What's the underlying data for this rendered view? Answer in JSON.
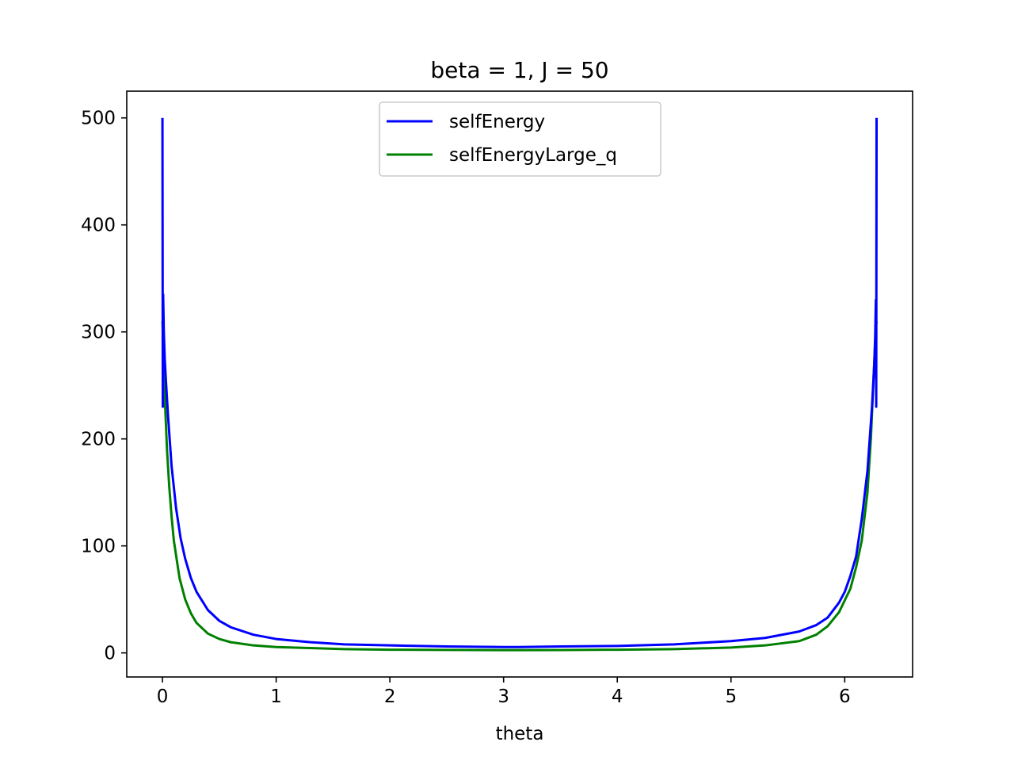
{
  "chart_data": {
    "type": "line",
    "title": "beta = 1, J = 50",
    "xlabel": "theta",
    "ylabel": "",
    "xlim": [
      -0.314,
      6.597
    ],
    "ylim": [
      -22.5,
      525
    ],
    "xticks": [
      0,
      1,
      2,
      3,
      4,
      5,
      6
    ],
    "xtick_labels": [
      "0",
      "1",
      "2",
      "3",
      "4",
      "5",
      "6"
    ],
    "yticks": [
      0,
      100,
      200,
      300,
      400,
      500
    ],
    "ytick_labels": [
      "0",
      "100",
      "200",
      "300",
      "400",
      "500"
    ],
    "grid": false,
    "legend_position": "upper center",
    "series": [
      {
        "name": "selfEnergy",
        "color": "#0000ff",
        "x": [
          0,
          0.003,
          0.006,
          0.012,
          0.02,
          0.03,
          0.05,
          0.08,
          0.12,
          0.16,
          0.2,
          0.25,
          0.3,
          0.4,
          0.5,
          0.6,
          0.8,
          1.0,
          1.3,
          1.6,
          2.0,
          2.5,
          3.0,
          3.14,
          3.5,
          4.0,
          4.5,
          5.0,
          5.3,
          5.6,
          5.75,
          5.85,
          5.95,
          6.0,
          6.05,
          6.1,
          6.15,
          6.2,
          6.24,
          6.26,
          6.268,
          6.274,
          6.277,
          6.2802
        ],
        "y": [
          500,
          230,
          335,
          300,
          275,
          255,
          220,
          175,
          135,
          107,
          88,
          70,
          57,
          40,
          30,
          24,
          17,
          13,
          10,
          8,
          7,
          6,
          5.5,
          5.5,
          6,
          6.5,
          8,
          11,
          14,
          20,
          26,
          33,
          47,
          57,
          72,
          90,
          125,
          170,
          230,
          270,
          295,
          330,
          230,
          500
        ]
      },
      {
        "name": "selfEnergyLarge_q",
        "color": "#008000",
        "x": [
          0.0005,
          0.005,
          0.01,
          0.02,
          0.04,
          0.06,
          0.08,
          0.1,
          0.15,
          0.2,
          0.25,
          0.3,
          0.4,
          0.5,
          0.6,
          0.8,
          1.0,
          1.3,
          1.6,
          2.0,
          2.5,
          3.0,
          3.14,
          3.5,
          4.0,
          4.5,
          5.0,
          5.3,
          5.6,
          5.75,
          5.85,
          5.95,
          6.05,
          6.1,
          6.15,
          6.2,
          6.23,
          6.26,
          6.27,
          6.275,
          6.28
        ],
        "y": [
          310,
          296,
          272,
          240,
          190,
          155,
          128,
          105,
          70,
          50,
          37,
          28,
          18,
          13,
          10,
          7,
          5.5,
          4.5,
          3.5,
          3,
          2.8,
          2.6,
          2.6,
          2.7,
          3,
          3.5,
          5,
          7,
          11,
          17,
          25,
          38,
          60,
          80,
          105,
          150,
          200,
          272,
          296,
          305,
          310
        ]
      }
    ]
  }
}
